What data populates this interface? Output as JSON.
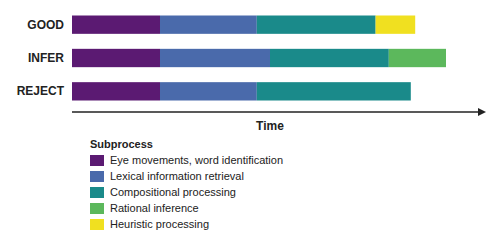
{
  "chart_data": {
    "type": "bar",
    "orientation": "horizontal",
    "stacked": true,
    "categories": [
      "GOOD",
      "INFER",
      "REJECT"
    ],
    "series": [
      {
        "name": "Eye movements, word identification",
        "color": "#5b1a72",
        "values": [
          20,
          20,
          20
        ]
      },
      {
        "name": "Lexical information retrieval",
        "color": "#4a6aab",
        "values": [
          22,
          25,
          22
        ]
      },
      {
        "name": "Compositional processing",
        "color": "#1a8a8a",
        "values": [
          27,
          27,
          35
        ]
      },
      {
        "name": "Rational inference",
        "color": "#5cb85c",
        "values": [
          0,
          13,
          0
        ]
      },
      {
        "name": "Heuristic processing",
        "color": "#f0e020",
        "values": [
          9,
          0,
          0
        ]
      }
    ],
    "x_label": "Time",
    "legend_title": "Subprocess",
    "xlim": [
      0,
      90
    ],
    "tick_labels": "y",
    "grid": false,
    "legend": "bottom"
  }
}
